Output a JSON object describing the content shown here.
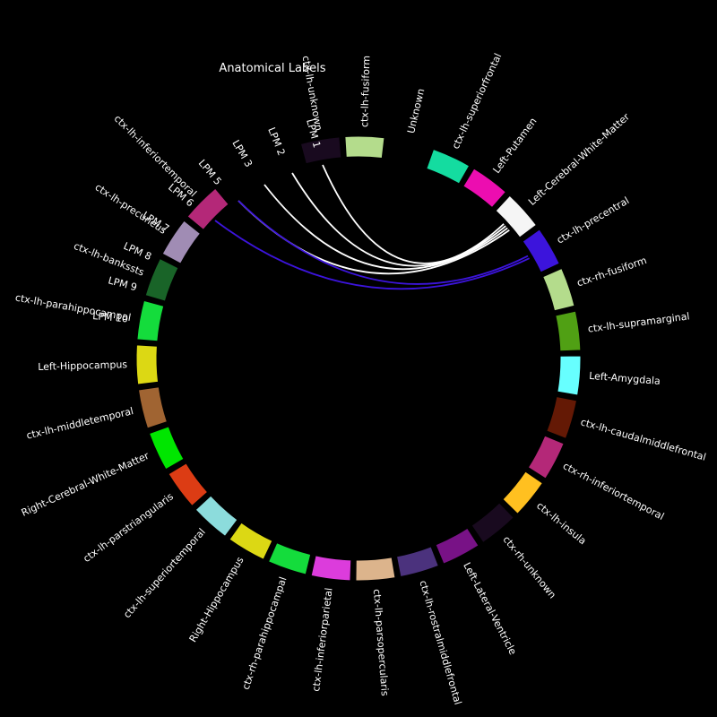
{
  "title": "Anatomical Labels",
  "nodes": [
    {
      "label": "ctx-lh-unknown",
      "color": "#190a1f"
    },
    {
      "label": "ctx-lh-fusiform",
      "color": "#b4dc8c"
    },
    {
      "label": "Unknown",
      "color": "#000000"
    },
    {
      "label": "ctx-lh-superiorfrontal",
      "color": "#14dca0"
    },
    {
      "label": "Left-Putamen",
      "color": "#ec0db0"
    },
    {
      "label": "Left-Cerebral-White-Matter",
      "color": "#f5f5f5"
    },
    {
      "label": "ctx-lh-precentral",
      "color": "#3c14dc"
    },
    {
      "label": "ctx-rh-fusiform",
      "color": "#b4dc8c"
    },
    {
      "label": "ctx-lh-supramarginal",
      "color": "#50a014"
    },
    {
      "label": "Left-Amygdala",
      "color": "#67ffff"
    },
    {
      "label": "ctx-lh-caudalmiddlefrontal",
      "color": "#641905"
    },
    {
      "label": "ctx-rh-inferiortemporal",
      "color": "#b42878"
    },
    {
      "label": "ctx-lh-insula",
      "color": "#ffc020"
    },
    {
      "label": "ctx-rh-unknown",
      "color": "#190a1f"
    },
    {
      "label": "Left-Lateral-Ventricle",
      "color": "#781286"
    },
    {
      "label": "ctx-lh-rostralmiddlefrontal",
      "color": "#4b327d"
    },
    {
      "label": "ctx-lh-parsopercularis",
      "color": "#dcb48c"
    },
    {
      "label": "ctx-lh-inferiorparietal",
      "color": "#dc3cdc"
    },
    {
      "label": "ctx-rh-parahippocampal",
      "color": "#14dc3c"
    },
    {
      "label": "Right-Hippocampus",
      "color": "#dcd814"
    },
    {
      "label": "ctx-lh-superiortemporal",
      "color": "#8cdcdc"
    },
    {
      "label": "ctx-lh-parstriangularis",
      "color": "#dc3c14"
    },
    {
      "label": "Right-Cerebral-White-Matter",
      "color": "#00e600"
    },
    {
      "label": "ctx-lh-middletemporal",
      "color": "#a06432"
    },
    {
      "label": "Left-Hippocampus",
      "color": "#dcd814"
    },
    {
      "label": "ctx-lh-parahippocampal",
      "color": "#14dc3c"
    },
    {
      "label": "ctx-lh-bankssts",
      "color": "#196428"
    },
    {
      "label": "ctx-lh-precuneus",
      "color": "#a08cb4"
    },
    {
      "label": "ctx-lh-inferiortemporal",
      "color": "#b42878"
    }
  ],
  "lpm_labels": [
    "LPM 1",
    "LPM 2",
    "LPM 3",
    "LPM 5",
    "LPM 6",
    "LPM 7",
    "LPM 8",
    "LPM 9",
    "LPM 10"
  ],
  "connections": [
    {
      "from": "LPM 1",
      "to": "Left-Cerebral-White-Matter",
      "color": "#ffffff"
    },
    {
      "from": "LPM 2",
      "to": "Left-Cerebral-White-Matter",
      "color": "#ffffff"
    },
    {
      "from": "LPM 3",
      "to": "Left-Cerebral-White-Matter",
      "color": "#ffffff"
    },
    {
      "from": "LPM 5",
      "to": "Left-Cerebral-White-Matter",
      "color": "#ffffff"
    },
    {
      "from": "LPM 6",
      "to": "Left-Cerebral-White-Matter",
      "color": "#ffffff"
    },
    {
      "from": "LPM 6",
      "to": "ctx-lh-precentral",
      "color": "#3c14dc"
    },
    {
      "from": "LPM 7",
      "to": "ctx-lh-precentral",
      "color": "#3c14dc"
    }
  ],
  "colors": {
    "background": "#000000",
    "text": "#ffffff"
  }
}
